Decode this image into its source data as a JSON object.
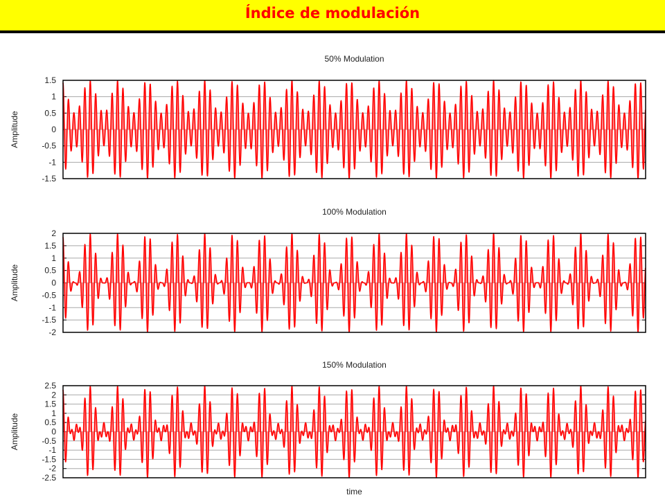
{
  "banner": {
    "title": "Índice de modulación",
    "background": "#ffff00",
    "title_color": "#ff0000"
  },
  "chart_data": [
    {
      "type": "line",
      "title": "50% Modulation",
      "ylabel": "Amplitude",
      "xlabel": "",
      "ylim": [
        -1.5,
        1.5
      ],
      "yticks": [
        "1.5",
        "1",
        "0.5",
        "0",
        "-0.5",
        "-1",
        "-1.5"
      ],
      "grid": true,
      "modulation_index": 0.5,
      "series": [
        {
          "color": "#ff0000",
          "fill": "#ff8080"
        }
      ]
    },
    {
      "type": "line",
      "title": "100% Modulation",
      "ylabel": "Amplitude",
      "xlabel": "",
      "ylim": [
        -2,
        2
      ],
      "yticks": [
        "2",
        "1.5",
        "1",
        "0.5",
        "0",
        "-0.5",
        "-1",
        "-1.5",
        "-2"
      ],
      "grid": true,
      "modulation_index": 1.0,
      "series": [
        {
          "color": "#ff0000",
          "fill": "#ff8080"
        }
      ]
    },
    {
      "type": "line",
      "title": "150% Modulation",
      "ylabel": "Amplitude",
      "xlabel": "time",
      "ylim": [
        -2.5,
        2.5
      ],
      "yticks": [
        "2.5",
        "2",
        "1.5",
        "1",
        "0.5",
        "0",
        "-0.5",
        "-1",
        "-1.5",
        "-2",
        "-2.5"
      ],
      "grid": true,
      "modulation_index": 1.5,
      "series": [
        {
          "color": "#ff0000",
          "fill": "#ff8080"
        }
      ]
    }
  ]
}
